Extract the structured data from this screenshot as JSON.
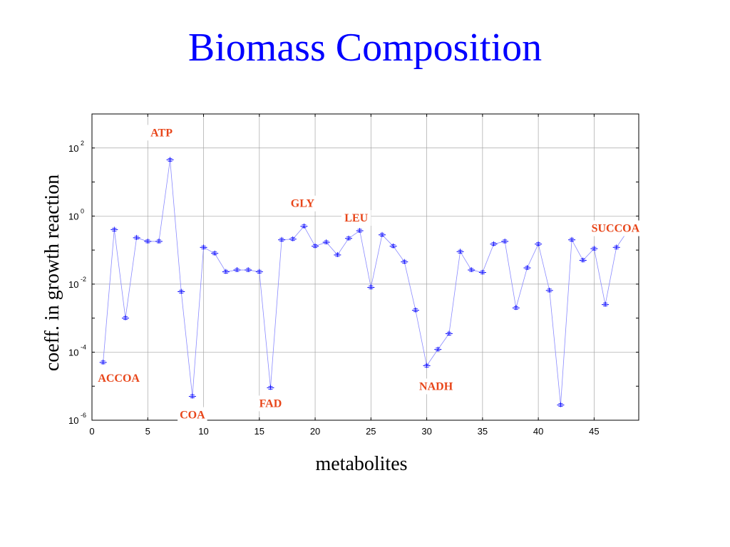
{
  "title": "Biomass Composition",
  "colors": {
    "title": "#0000ff",
    "series": "#0000ff",
    "line": "#8a8aff",
    "annotation": "#e8461a",
    "grid": "#a6a6a6"
  },
  "chart_data": {
    "type": "line",
    "title": "",
    "xlabel": "metabolites",
    "ylabel": "coeff. in growth reaction",
    "xlim": [
      0,
      49
    ],
    "ylim": [
      1e-06,
      1000.0
    ],
    "yscale": "log",
    "grid": true,
    "xticks": [
      "0",
      "5",
      "10",
      "15",
      "20",
      "25",
      "30",
      "35",
      "40",
      "45"
    ],
    "xtick_values": [
      0,
      5,
      10,
      15,
      20,
      25,
      30,
      35,
      40,
      45
    ],
    "yticks": [
      {
        "base": "10",
        "exp": "-6",
        "value": 1e-06
      },
      {
        "base": "10",
        "exp": "-4",
        "value": 0.0001
      },
      {
        "base": "10",
        "exp": "-2",
        "value": 0.01
      },
      {
        "base": "10",
        "exp": "0",
        "value": 1
      },
      {
        "base": "10",
        "exp": "2",
        "value": 100
      }
    ],
    "x": [
      1,
      2,
      3,
      4,
      5,
      6,
      7,
      8,
      9,
      10,
      11,
      12,
      13,
      14,
      15,
      16,
      17,
      18,
      19,
      20,
      21,
      22,
      23,
      24,
      25,
      26,
      27,
      28,
      29,
      30,
      31,
      32,
      33,
      34,
      35,
      36,
      37,
      38,
      39,
      40,
      41,
      42,
      43,
      44,
      45,
      46,
      47,
      48
    ],
    "values": [
      5e-05,
      0.4,
      0.001,
      0.23,
      0.18,
      0.18,
      45,
      0.006,
      5e-06,
      0.12,
      0.08,
      0.023,
      0.026,
      0.026,
      0.023,
      9e-06,
      0.2,
      0.21,
      0.5,
      0.13,
      0.17,
      0.072,
      0.22,
      0.37,
      0.008,
      0.28,
      0.13,
      0.045,
      0.0017,
      4e-05,
      0.00012,
      0.00035,
      0.09,
      0.026,
      0.022,
      0.15,
      0.18,
      0.002,
      0.03,
      0.15,
      0.0065,
      2.8e-06,
      0.2,
      0.05,
      0.11,
      0.0025,
      0.12,
      0.36
    ],
    "annotations": [
      {
        "text": "ACCOA",
        "x": 1
      },
      {
        "text": "ATP",
        "x": 7
      },
      {
        "text": "COA",
        "x": 9
      },
      {
        "text": "FAD",
        "x": 16
      },
      {
        "text": "GLY",
        "x": 19
      },
      {
        "text": "LEU",
        "x": 24
      },
      {
        "text": "NADH",
        "x": 30
      },
      {
        "text": "SUCCOA",
        "x": 48
      }
    ]
  }
}
